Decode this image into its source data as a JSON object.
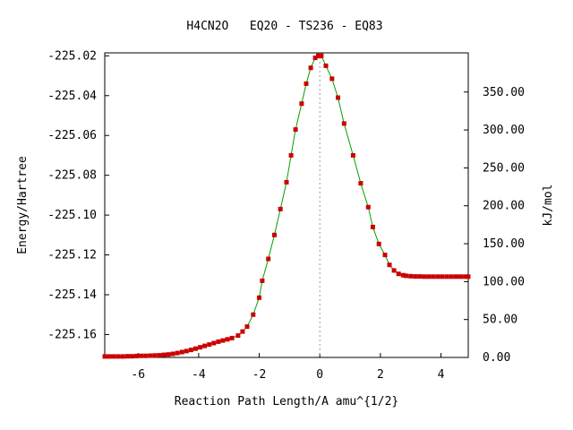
{
  "chart_data": {
    "type": "line",
    "title": "H4CN2O   EQ20 - TS236 - EQ83",
    "xlabel": "Reaction Path Length/A amu^{1/2}",
    "ylabel": "Energy/Hartree",
    "y2label": "kJ/mol",
    "xlim": [
      -7.1,
      4.9
    ],
    "ylim": [
      -225.1715,
      -225.0185
    ],
    "y2lim": [
      0,
      401.7
    ],
    "x_ticks": [
      -6,
      -4,
      -2,
      0,
      2,
      4
    ],
    "x_tick_labels": [
      "-6",
      "-4",
      "-2",
      "0",
      "2",
      "4"
    ],
    "y_ticks": [
      -225.16,
      -225.14,
      -225.12,
      -225.1,
      -225.08,
      -225.06,
      -225.04,
      -225.02
    ],
    "y_tick_labels": [
      "-225.16",
      "-225.14",
      "-225.12",
      "-225.10",
      "-225.08",
      "-225.06",
      "-225.04",
      "-225.02"
    ],
    "y2_ticks": [
      0,
      50,
      100,
      150,
      200,
      250,
      300,
      350
    ],
    "y2_tick_labels": [
      "0.00",
      "50.00",
      "100.00",
      "150.00",
      "200.00",
      "250.00",
      "300.00",
      "350.00"
    ],
    "grid": false,
    "ts_marker_x": 0,
    "colors": {
      "line": "#00a000",
      "points": "#cc0000",
      "ts_line": "#999999",
      "axes": "#000000"
    },
    "series": [
      {
        "x": [
          -7.1,
          -6.95,
          -6.8,
          -6.65,
          -6.5,
          -6.35,
          -6.2,
          -6.05,
          -5.9,
          -5.75,
          -5.6,
          -5.45,
          -5.3,
          -5.15,
          -5.0,
          -4.85,
          -4.7,
          -4.55,
          -4.4,
          -4.25,
          -4.1,
          -3.95,
          -3.8,
          -3.65,
          -3.5,
          -3.35,
          -3.2,
          -3.05,
          -2.9,
          -2.7,
          -2.55,
          -2.4,
          -2.2,
          -2.0,
          -1.9,
          -1.7,
          -1.5,
          -1.3,
          -1.1,
          -0.95,
          -0.8,
          -0.6,
          -0.45,
          -0.3,
          -0.15,
          -0.05,
          0.0,
          0.05,
          0.2,
          0.4,
          0.6,
          0.8,
          1.1,
          1.35,
          1.6,
          1.75,
          1.95,
          2.15,
          2.3,
          2.45,
          2.6,
          2.75,
          2.85,
          3.0,
          3.15,
          3.3,
          3.45,
          3.6,
          3.75,
          3.9,
          4.05,
          4.2,
          4.35,
          4.5,
          4.65,
          4.8,
          4.9
        ],
        "y": [
          -225.171,
          -225.171,
          -225.171,
          -225.171,
          -225.171,
          -225.1709,
          -225.1709,
          -225.1708,
          -225.1707,
          -225.1707,
          -225.1706,
          -225.1705,
          -225.1704,
          -225.1702,
          -225.17,
          -225.1697,
          -225.1693,
          -225.1688,
          -225.1683,
          -225.1677,
          -225.1671,
          -225.1664,
          -225.1657,
          -225.165,
          -225.1643,
          -225.1636,
          -225.163,
          -225.1624,
          -225.1618,
          -225.1605,
          -225.1585,
          -225.156,
          -225.15,
          -225.1415,
          -225.133,
          -225.122,
          -225.11,
          -225.097,
          -225.0835,
          -225.07,
          -225.057,
          -225.044,
          -225.034,
          -225.026,
          -225.021,
          -225.02,
          -225.02,
          -225.02,
          -225.025,
          -225.0315,
          -225.041,
          -225.054,
          -225.07,
          -225.084,
          -225.096,
          -225.106,
          -225.1145,
          -225.12,
          -225.125,
          -225.1278,
          -225.1295,
          -225.1302,
          -225.1305,
          -225.1307,
          -225.1308,
          -225.1308,
          -225.1309,
          -225.1309,
          -225.1309,
          -225.1309,
          -225.1309,
          -225.1309,
          -225.1309,
          -225.1309,
          -225.1309,
          -225.1309,
          -225.1309
        ]
      }
    ]
  }
}
